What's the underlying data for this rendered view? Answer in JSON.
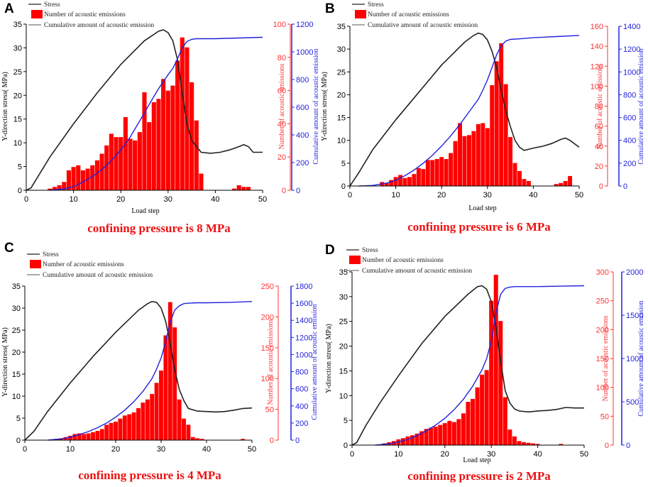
{
  "colors": {
    "stress": "#222222",
    "emissions": "#ff0000",
    "cumulative": "#2222dd",
    "axis_left": "#000000",
    "axis_mid": "#ff3333",
    "axis_right": "#2222dd",
    "caption": "#ee1111"
  },
  "chart_data": [
    {
      "type": "bar",
      "panel": "A",
      "caption": "confining pressure is 8 MPa",
      "legend": [
        "Stress",
        "Number of acoustic emissions",
        "Cumulative amount of acoustic emission"
      ],
      "xlabel": "Load step",
      "ylabel_left": "Y-direction stress( MPa)",
      "ylabel_mid": "Number of acoustic emissions",
      "ylabel_right": "Cumulative amount of acoustic emission",
      "xlim": [
        0,
        50
      ],
      "xticks": [
        0,
        10,
        20,
        30,
        40,
        50
      ],
      "ylim_left": [
        0,
        35
      ],
      "yticks_left": [
        0,
        5,
        10,
        15,
        20,
        25,
        30,
        35
      ],
      "ylim_mid": [
        0,
        100
      ],
      "yticks_mid": [
        0,
        20,
        40,
        60,
        80,
        100
      ],
      "ylim_right": [
        0,
        1200
      ],
      "yticks_right": [
        0,
        200,
        400,
        600,
        800,
        1000,
        1200
      ],
      "stress": {
        "x": [
          0,
          1,
          5,
          10,
          15,
          20,
          25,
          28,
          29,
          30,
          31,
          32,
          33,
          34,
          35,
          37,
          39,
          41,
          43,
          45,
          46,
          47,
          48,
          50
        ],
        "y": [
          0,
          0.5,
          7,
          14,
          20.5,
          26.5,
          31.5,
          33.5,
          33.8,
          33.2,
          31.5,
          27.5,
          20.5,
          14,
          10.5,
          8,
          7.8,
          8,
          8.5,
          9.2,
          9.6,
          9.2,
          8,
          8
        ]
      },
      "emissions": {
        "x": [
          5,
          6,
          7,
          8,
          9,
          10,
          11,
          12,
          13,
          14,
          15,
          16,
          17,
          18,
          19,
          20,
          21,
          22,
          23,
          24,
          25,
          26,
          27,
          28,
          29,
          30,
          31,
          32,
          33,
          34,
          35,
          36,
          37,
          44,
          45,
          46,
          47
        ],
        "y": [
          1,
          2,
          3,
          5,
          12,
          14,
          15,
          12,
          13,
          15,
          18,
          22,
          27,
          34,
          32,
          32,
          44,
          31,
          30,
          35,
          59,
          41,
          53,
          55,
          67,
          60,
          63,
          78,
          92,
          86,
          65,
          42,
          10,
          1,
          3,
          2,
          2
        ]
      },
      "cumulative": {
        "x": [
          5,
          8,
          10,
          12,
          14,
          16,
          18,
          20,
          22,
          24,
          26,
          28,
          30,
          31,
          32,
          33,
          34,
          35,
          36,
          37,
          40,
          45,
          50
        ],
        "y": [
          0,
          10,
          25,
          60,
          100,
          150,
          215,
          290,
          385,
          500,
          620,
          735,
          835,
          880,
          950,
          1030,
          1075,
          1090,
          1095,
          1095,
          1095,
          1100,
          1105
        ]
      }
    },
    {
      "type": "bar",
      "panel": "B",
      "caption": "confining pressure is 6 MPa",
      "legend": [
        "Stress",
        "Number of acoustic emissions",
        "Cumulative amount of acoustic emission"
      ],
      "xlabel": "Load step",
      "ylabel_left": "Y-direction stress( MPa)",
      "ylabel_mid": "Number of acoustic emissions",
      "ylabel_right": "Cumulative amount of acoustic emission",
      "xlim": [
        0,
        50
      ],
      "xticks": [
        0,
        10,
        20,
        30,
        40,
        50
      ],
      "ylim_left": [
        0,
        35
      ],
      "yticks_left": [
        0,
        5,
        10,
        15,
        20,
        25,
        30,
        35
      ],
      "ylim_mid": [
        0,
        160
      ],
      "yticks_mid": [
        0,
        20,
        40,
        60,
        80,
        100,
        120,
        140,
        160
      ],
      "ylim_right": [
        0,
        1400
      ],
      "yticks_right": [
        0,
        200,
        400,
        600,
        800,
        1000,
        1200,
        1400
      ],
      "stress": {
        "x": [
          0,
          2,
          5,
          10,
          15,
          20,
          25,
          27,
          28,
          29,
          30,
          31,
          32,
          33,
          34,
          35,
          36,
          37,
          38,
          40,
          42,
          44,
          46,
          47,
          48,
          50
        ],
        "y": [
          0,
          3,
          8,
          14.5,
          20.5,
          26.5,
          31.5,
          33,
          33.5,
          33.2,
          32,
          29.5,
          26,
          21,
          16.5,
          13,
          10,
          8.5,
          7.8,
          8.3,
          8.7,
          9.3,
          10.2,
          10.5,
          10,
          8.5
        ]
      },
      "emissions": {
        "x": [
          7,
          8,
          9,
          10,
          11,
          12,
          13,
          14,
          15,
          16,
          17,
          18,
          19,
          20,
          21,
          22,
          23,
          24,
          25,
          26,
          27,
          28,
          29,
          30,
          31,
          32,
          33,
          34,
          35,
          36,
          37,
          38,
          39,
          45,
          46,
          47,
          48
        ],
        "y": [
          4,
          3,
          6,
          9,
          11,
          8,
          9,
          12,
          18,
          17,
          26,
          26,
          27,
          29,
          27,
          33,
          45,
          63,
          50,
          51,
          55,
          62,
          63,
          58,
          101,
          125,
          143,
          102,
          49,
          23,
          15,
          7,
          5,
          2,
          3,
          5,
          10
        ]
      },
      "cumulative": {
        "x": [
          2,
          5,
          8,
          10,
          12,
          14,
          16,
          18,
          20,
          22,
          24,
          26,
          28,
          29,
          30,
          31,
          32,
          33,
          34,
          35,
          37,
          40,
          45,
          50
        ],
        "y": [
          0,
          5,
          25,
          50,
          90,
          140,
          200,
          270,
          350,
          440,
          540,
          650,
          760,
          840,
          930,
          1040,
          1150,
          1230,
          1270,
          1285,
          1290,
          1300,
          1310,
          1320
        ]
      }
    },
    {
      "type": "bar",
      "panel": "C",
      "caption": "confining pressure is 4 MPa",
      "legend": [
        "Stress",
        "Number of acoustic emissions",
        "Cumulative amount of acoustic emission"
      ],
      "xlabel": "",
      "ylabel_left": "Y-direction stress( MPa)",
      "ylabel_mid": "Number of acoustic emissions",
      "ylabel_right": "Cumulative amount of acoustic emission",
      "xlim": [
        0,
        50
      ],
      "xticks": [
        0,
        10,
        20,
        30,
        40,
        50
      ],
      "ylim_left": [
        0,
        35
      ],
      "yticks_left": [
        0,
        5,
        10,
        15,
        20,
        25,
        30,
        35
      ],
      "ylim_mid": [
        0,
        250
      ],
      "yticks_mid": [
        0,
        50,
        100,
        150,
        200,
        250
      ],
      "ylim_right": [
        0,
        1800
      ],
      "yticks_right": [
        0,
        200,
        400,
        600,
        800,
        1000,
        1200,
        1400,
        1600,
        1800
      ],
      "stress": {
        "x": [
          0,
          2,
          5,
          10,
          15,
          20,
          25,
          27,
          28,
          29,
          30,
          31,
          32,
          33,
          34,
          35,
          36,
          38,
          40,
          42,
          44,
          46,
          48,
          50
        ],
        "y": [
          0,
          2,
          6.5,
          13,
          19,
          24.5,
          29.5,
          31,
          31.5,
          31.3,
          30,
          27,
          22,
          16,
          11.5,
          9,
          7.2,
          6.6,
          6.5,
          6.4,
          6.5,
          6.8,
          7.2,
          7.3
        ]
      },
      "emissions": {
        "x": [
          7,
          8,
          9,
          10,
          11,
          12,
          13,
          14,
          15,
          16,
          17,
          18,
          19,
          20,
          21,
          22,
          23,
          24,
          25,
          26,
          27,
          28,
          29,
          30,
          31,
          32,
          33,
          34,
          35,
          36,
          37,
          38,
          39,
          48
        ],
        "y": [
          2,
          3,
          5,
          7,
          10,
          11,
          10,
          11,
          13,
          15,
          18,
          25,
          28,
          30,
          35,
          40,
          42,
          45,
          52,
          61,
          66,
          75,
          93,
          113,
          170,
          224,
          183,
          66,
          35,
          25,
          5,
          3,
          2,
          2
        ]
      },
      "cumulative": {
        "x": [
          5,
          8,
          10,
          12,
          14,
          16,
          18,
          20,
          22,
          24,
          26,
          28,
          29,
          30,
          31,
          32,
          33,
          34,
          35,
          36,
          38,
          40,
          45,
          50
        ],
        "y": [
          0,
          15,
          35,
          65,
          100,
          145,
          200,
          270,
          350,
          450,
          570,
          720,
          830,
          960,
          1150,
          1380,
          1520,
          1570,
          1595,
          1600,
          1605,
          1605,
          1610,
          1620
        ]
      }
    },
    {
      "type": "bar",
      "panel": "D",
      "caption": "confining pressure is 2 MPa",
      "legend": [
        "Stress",
        "Number of acoustic emissions",
        "Cumulative amount of acoustic emission"
      ],
      "xlabel": "Load step",
      "ylabel_left": "Y-direction stress( MPa)",
      "ylabel_mid": "Number of acoustic emissions",
      "ylabel_right": "Cumulative amount of acoustic emission",
      "xlim": [
        0,
        50
      ],
      "xticks": [
        0,
        10,
        20,
        30,
        40,
        50
      ],
      "ylim_left": [
        0,
        35
      ],
      "yticks_left": [
        0,
        5,
        10,
        15,
        20,
        25,
        30,
        35
      ],
      "ylim_mid": [
        0,
        300
      ],
      "yticks_mid": [
        0,
        50,
        100,
        150,
        200,
        250,
        300
      ],
      "ylim_right": [
        0,
        2000
      ],
      "yticks_right": [
        0,
        500,
        1000,
        1500,
        2000
      ],
      "stress": {
        "x": [
          0,
          1,
          3,
          6,
          10,
          15,
          20,
          25,
          27,
          28,
          29,
          30,
          31,
          32,
          33,
          34,
          35,
          36,
          38,
          40,
          42,
          44,
          46,
          48,
          50
        ],
        "y": [
          0,
          0.5,
          4,
          8.5,
          14,
          20.5,
          26,
          30.5,
          32,
          32.2,
          31.5,
          29,
          24,
          17,
          11,
          8.5,
          7.3,
          6.9,
          6.7,
          6.9,
          7,
          7.2,
          7.6,
          7.5,
          7.5
        ]
      },
      "emissions": {
        "x": [
          7,
          8,
          9,
          10,
          11,
          12,
          13,
          14,
          15,
          16,
          17,
          18,
          19,
          20,
          21,
          22,
          23,
          24,
          25,
          26,
          27,
          28,
          29,
          30,
          31,
          32,
          33,
          34,
          35,
          36,
          37,
          38,
          39,
          40,
          45
        ],
        "y": [
          3,
          5,
          7,
          10,
          12,
          15,
          17,
          20,
          24,
          28,
          30,
          32,
          35,
          38,
          42,
          40,
          45,
          55,
          75,
          80,
          100,
          122,
          130,
          250,
          295,
          215,
          83,
          27,
          15,
          7,
          5,
          4,
          3,
          2,
          2
        ]
      },
      "cumulative": {
        "x": [
          5,
          8,
          10,
          12,
          14,
          16,
          18,
          20,
          22,
          24,
          26,
          28,
          29,
          30,
          31,
          32,
          33,
          34,
          35,
          36,
          40,
          45,
          50
        ],
        "y": [
          0,
          15,
          35,
          65,
          110,
          165,
          230,
          310,
          410,
          530,
          680,
          870,
          1000,
          1200,
          1520,
          1740,
          1810,
          1825,
          1830,
          1830,
          1830,
          1835,
          1840
        ]
      }
    }
  ]
}
